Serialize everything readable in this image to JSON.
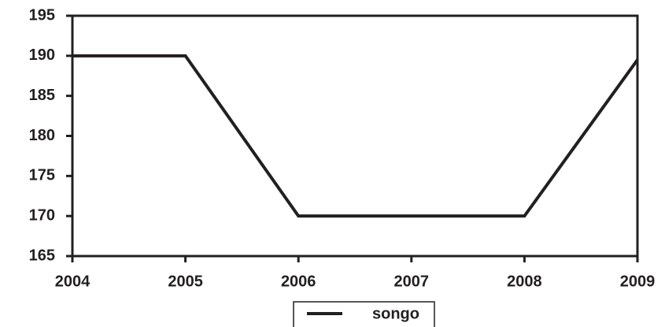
{
  "chart_data": {
    "type": "line",
    "x": [
      2004,
      2005,
      2006,
      2007,
      2008,
      2009
    ],
    "series": [
      {
        "name": "songo",
        "color": "#231f20",
        "values": [
          190,
          190,
          170,
          170,
          170,
          189.5
        ]
      }
    ],
    "xlim": [
      2004,
      2009
    ],
    "xticks": [
      2004,
      2005,
      2006,
      2007,
      2008,
      2009
    ],
    "ylim": [
      165,
      195
    ],
    "yticks": [
      165,
      170,
      175,
      180,
      185,
      190,
      195
    ],
    "grid": false,
    "legend": "bottom"
  }
}
